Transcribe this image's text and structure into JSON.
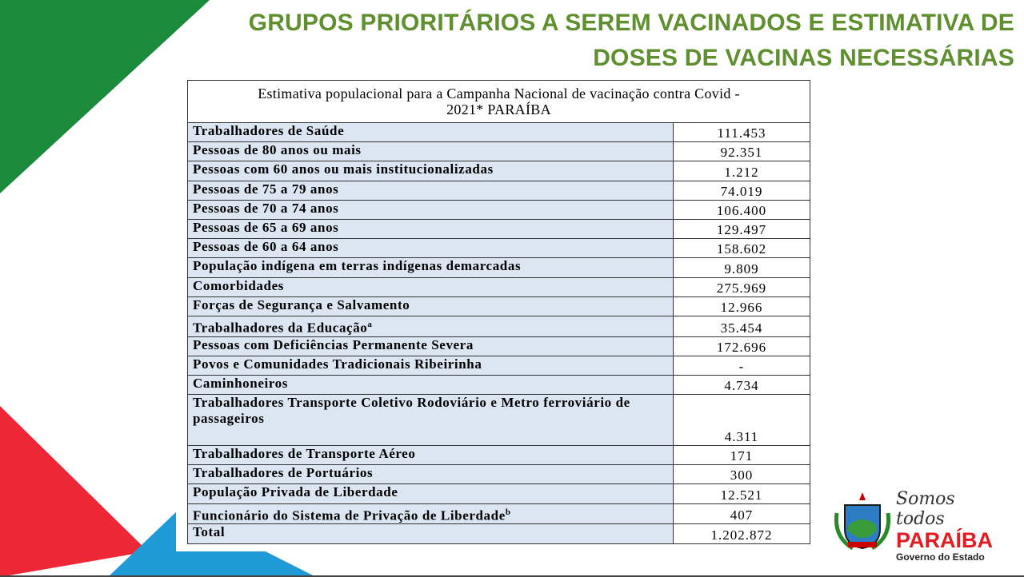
{
  "header": {
    "title_line1": "GRUPOS PRIORITÁRIOS A SEREM VACINADOS E ESTIMATIVA DE",
    "title_line2": "DOSES DE VACINAS NECESSÁRIAS"
  },
  "table": {
    "caption_line1": "Estimativa populacional para a Campanha Nacional de vacinação contra Covid -",
    "caption_line2": "2021* PARAÍBA",
    "rows": [
      {
        "label": "Trabalhadores de Saúde",
        "value": "111.453"
      },
      {
        "label": "Pessoas de 80 anos ou mais",
        "value": "92.351"
      },
      {
        "label": "Pessoas com 60 anos ou mais institucionalizadas",
        "value": "1.212"
      },
      {
        "label": "Pessoas de 75 a 79 anos",
        "value": "74.019"
      },
      {
        "label": "Pessoas de 70 a 74 anos",
        "value": "106.400"
      },
      {
        "label": "Pessoas de 65 a 69 anos",
        "value": "129.497"
      },
      {
        "label": "Pessoas de 60 a 64 anos",
        "value": "158.602"
      },
      {
        "label": "População indígena em terras indígenas demarcadas",
        "value": "9.809"
      },
      {
        "label": "Comorbidades",
        "value": "275.969"
      },
      {
        "label": "Forças de Segurança e Salvamento",
        "value": "12.966"
      },
      {
        "label": "Trabalhadores da Educação",
        "note": "a",
        "value": "35.454"
      },
      {
        "label": "Pessoas com Deficiências Permanente Severa",
        "value": "172.696"
      },
      {
        "label": "Povos e Comunidades Tradicionais Ribeirinha",
        "value": "-"
      },
      {
        "label": "Caminhoneiros",
        "value": "4.734"
      },
      {
        "label": "Trabalhadores Transporte Coletivo Rodoviário e Metro ferroviário de passageiros",
        "value": "4.311"
      },
      {
        "label": "Trabalhadores de Transporte Aéreo",
        "value": "171"
      },
      {
        "label": "Trabalhadores de Portuários",
        "value": "300"
      },
      {
        "label": "População Privada de Liberdade",
        "value": "12.521"
      },
      {
        "label": "Funcionário do Sistema de Privação de Liberdade",
        "note": "b",
        "value": "407"
      },
      {
        "label": "Total",
        "value": "1.202.872"
      }
    ]
  },
  "logo": {
    "slogan": "Somos todos",
    "state": "PARAÍBA",
    "government": "Governo do Estado"
  }
}
